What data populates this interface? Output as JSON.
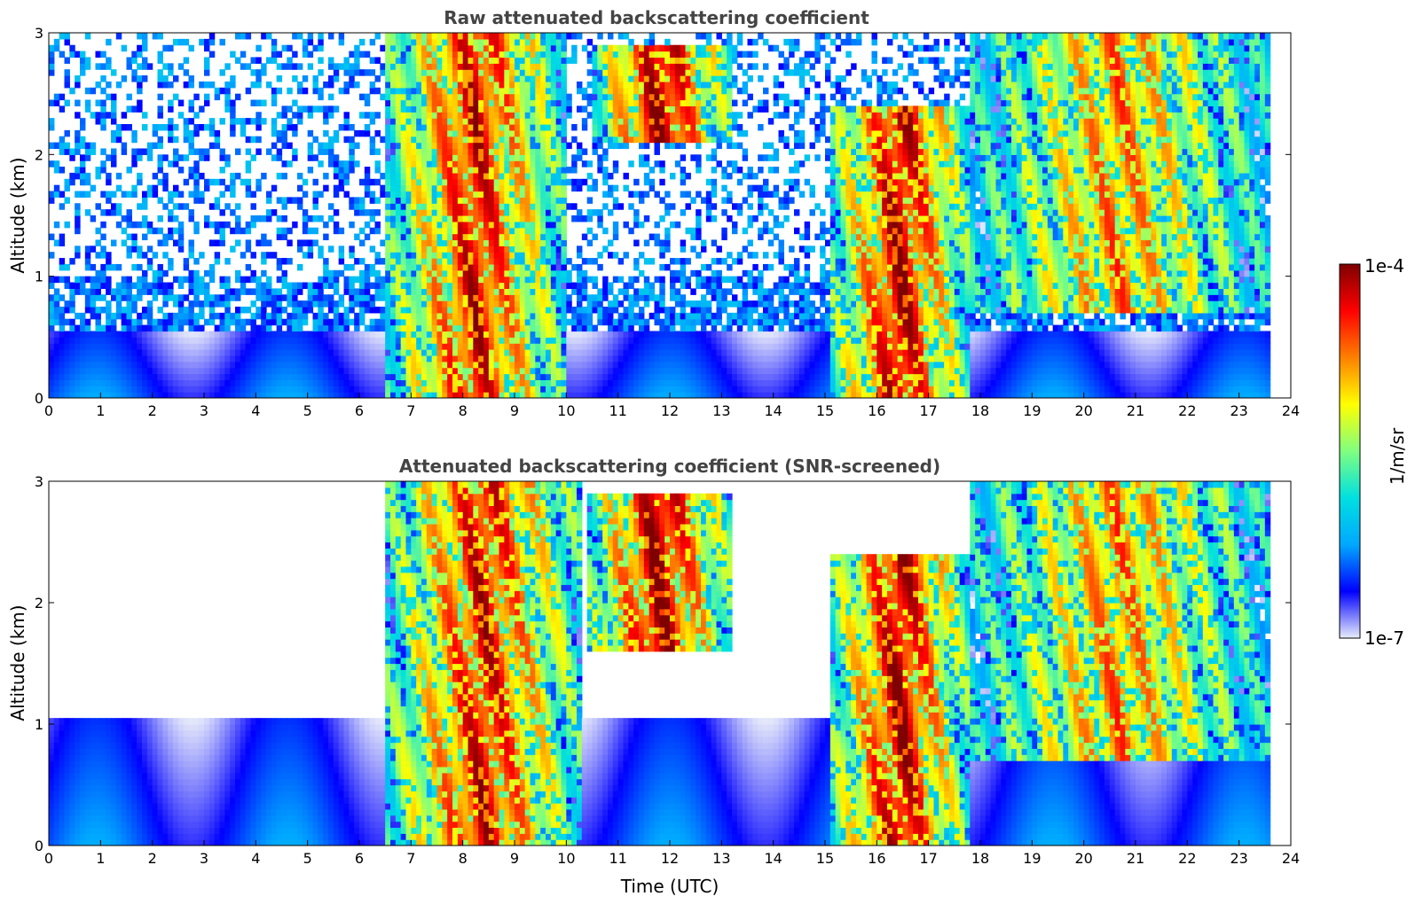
{
  "chart_data": [
    {
      "type": "heatmap",
      "title": "Raw attenuated backscattering coefficient",
      "xlabel": "",
      "ylabel": "Altitude (km)",
      "xlim": [
        0,
        24
      ],
      "ylim": [
        0,
        3
      ],
      "xticks": [
        "0",
        "1",
        "2",
        "3",
        "4",
        "5",
        "6",
        "7",
        "8",
        "9",
        "10",
        "11",
        "12",
        "13",
        "14",
        "15",
        "16",
        "17",
        "18",
        "19",
        "20",
        "21",
        "22",
        "23",
        "24"
      ],
      "yticks": [
        "0",
        "1",
        "2",
        "3"
      ],
      "data_end_hour": 23.55,
      "screened": false,
      "features": [
        {
          "name": "boundary-layer",
          "t0": 0,
          "t1": 23.55,
          "base_km": 0,
          "top_km": 0.55,
          "level": 0.18
        },
        {
          "name": "cloud-morning-fall",
          "t0": 6.5,
          "t1": 10.0,
          "base_km": 0,
          "top_km": 3.0,
          "level": 0.9
        },
        {
          "name": "cloud-midday-patch",
          "t0": 10.5,
          "t1": 13.2,
          "base_km": 2.1,
          "top_km": 2.9,
          "level": 0.97
        },
        {
          "name": "cloud-afternoon",
          "t0": 15.1,
          "t1": 17.8,
          "base_km": 0,
          "top_km": 2.4,
          "level": 0.95
        },
        {
          "name": "cloud-evening-streaks",
          "t0": 17.8,
          "t1": 23.55,
          "base_km": 0.7,
          "top_km": 3.0,
          "level": 0.75
        }
      ]
    },
    {
      "type": "heatmap",
      "title": "Attenuated backscattering coefficient (SNR-screened)",
      "xlabel": "Time (UTC)",
      "ylabel": "Altitude (km)",
      "xlim": [
        0,
        24
      ],
      "ylim": [
        0,
        3
      ],
      "xticks": [
        "0",
        "1",
        "2",
        "3",
        "4",
        "5",
        "6",
        "7",
        "8",
        "9",
        "10",
        "11",
        "12",
        "13",
        "14",
        "15",
        "16",
        "17",
        "18",
        "19",
        "20",
        "21",
        "22",
        "23",
        "24"
      ],
      "yticks": [
        "0",
        "1",
        "2",
        "3"
      ],
      "data_end_hour": 23.55,
      "screened": true,
      "features": [
        {
          "name": "boundary-layer",
          "t0": 0,
          "t1": 23.55,
          "base_km": 0,
          "top_km": 1.05,
          "level": 0.18
        },
        {
          "name": "cloud-morning-fall",
          "t0": 6.5,
          "t1": 10.3,
          "base_km": 0,
          "top_km": 3.0,
          "level": 0.9
        },
        {
          "name": "cloud-midday-patch",
          "t0": 10.4,
          "t1": 13.2,
          "base_km": 1.6,
          "top_km": 2.9,
          "level": 0.97
        },
        {
          "name": "cloud-afternoon",
          "t0": 15.1,
          "t1": 17.8,
          "base_km": 0,
          "top_km": 2.4,
          "level": 0.95
        },
        {
          "name": "cloud-evening-streaks",
          "t0": 17.8,
          "t1": 23.55,
          "base_km": 0.7,
          "top_km": 3.0,
          "level": 0.75
        }
      ]
    }
  ],
  "colorbar": {
    "label": "1/m/sr",
    "max_label": "1e-4",
    "min_label": "1e-7",
    "colormap": [
      "#e8ecfa",
      "#0000ff",
      "#00a8ff",
      "#00e0e0",
      "#80ff80",
      "#ffff00",
      "#ff8000",
      "#ff0000",
      "#800000"
    ]
  }
}
